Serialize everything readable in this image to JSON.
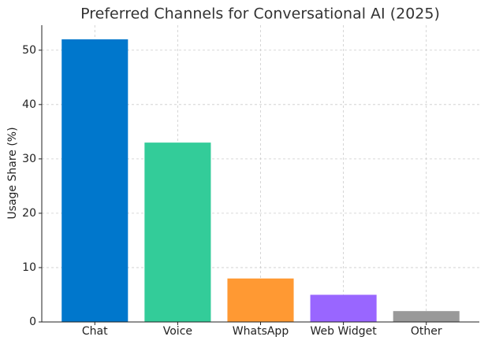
{
  "chart_data": {
    "type": "bar",
    "title": "Preferred Channels for Conversational AI (2025)",
    "y_label": "Usage Share (%)",
    "categories": [
      "Chat",
      "Voice",
      "WhatsApp",
      "Web Widget",
      "Other"
    ],
    "values": [
      52,
      33,
      8,
      5,
      2
    ],
    "colors": [
      "#0077cc",
      "#33cc99",
      "#ff9933",
      "#9966ff",
      "#999999"
    ],
    "ylim": [
      0,
      54.6
    ],
    "yticks": [
      0,
      10,
      20,
      30,
      40,
      50
    ],
    "grid": true
  }
}
